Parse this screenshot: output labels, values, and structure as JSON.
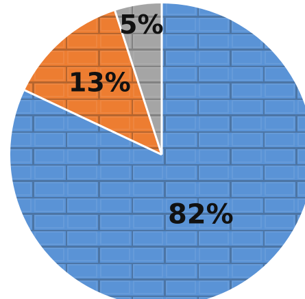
{
  "chart_data": {
    "type": "pie",
    "start_angle_deg": 0,
    "direction": "clockwise",
    "background_texture": "brick-wall",
    "slices": [
      {
        "label": "82%",
        "value": 82,
        "color": "#5a93d6"
      },
      {
        "label": "13%",
        "value": 13,
        "color": "#ed7d31"
      },
      {
        "label": "5%",
        "value": 5,
        "color": "#a5a5a5"
      }
    ]
  }
}
